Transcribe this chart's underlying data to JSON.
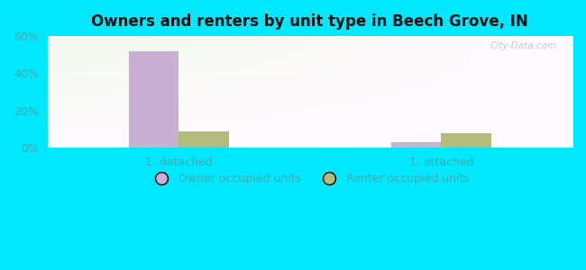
{
  "title": "Owners and renters by unit type in Beech Grove, IN",
  "categories": [
    "1, detached",
    "1, attached"
  ],
  "owner_values": [
    52,
    3
  ],
  "renter_values": [
    9,
    8
  ],
  "owner_color": "#c9afd4",
  "renter_color": "#b5bb7c",
  "ylim": [
    0,
    60
  ],
  "yticks": [
    0,
    20,
    40,
    60
  ],
  "ytick_labels": [
    "0%",
    "20%",
    "40%",
    "60%"
  ],
  "legend_owner": "Owner occupied units",
  "legend_renter": "Renter occupied units",
  "background_outer": "#00e8ff",
  "watermark": "City-Data.com",
  "bar_width": 0.38,
  "group_positions": [
    1.0,
    3.0
  ],
  "tick_color": "#44aaaa",
  "title_fontsize": 12
}
